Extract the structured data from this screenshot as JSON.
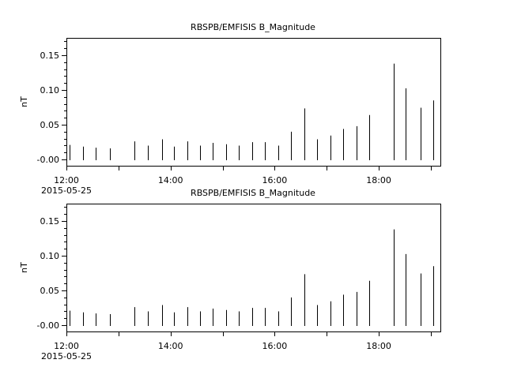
{
  "chart_data": [
    {
      "type": "bar",
      "title": "RBSPB/EMFISIS  B_Magnitude",
      "ylabel": "nT",
      "xlabel": "",
      "date_label": "2015-05-25",
      "ylim": [
        -0.009,
        0.175
      ],
      "xlim": [
        "12:00",
        "19:11"
      ],
      "yticks": [
        "-0.00",
        "0.05",
        "0.10",
        "0.15"
      ],
      "ytick_values": [
        0,
        0.05,
        0.1,
        0.15
      ],
      "xticks": [
        "12:00",
        "14:00",
        "16:00",
        "18:00"
      ],
      "grid": false,
      "x": [
        "12:04",
        "12:19",
        "12:34",
        "12:50",
        "13:18",
        "13:34",
        "13:50",
        "14:04",
        "14:19",
        "14:34",
        "14:49",
        "15:04",
        "15:19",
        "15:34",
        "15:49",
        "16:04",
        "16:19",
        "16:34",
        "16:49",
        "17:04",
        "17:19",
        "17:34",
        "17:49",
        "18:17",
        "18:31",
        "18:48",
        "19:03"
      ],
      "values": [
        0.021,
        0.0185,
        0.017,
        0.016,
        0.026,
        0.02,
        0.029,
        0.0185,
        0.026,
        0.02,
        0.024,
        0.022,
        0.02,
        0.025,
        0.025,
        0.02,
        0.04,
        0.0735,
        0.029,
        0.0345,
        0.044,
        0.048,
        0.064,
        0.138,
        0.1025,
        0.0745,
        0.085
      ],
      "color": "#000000"
    },
    {
      "type": "bar",
      "title": "RBSPB/EMFISIS  B_Magnitude",
      "ylabel": "nT",
      "xlabel": "",
      "date_label": "2015-05-25",
      "ylim": [
        -0.009,
        0.175
      ],
      "xlim": [
        "12:00",
        "19:11"
      ],
      "yticks": [
        "-0.00",
        "0.05",
        "0.10",
        "0.15"
      ],
      "ytick_values": [
        0,
        0.05,
        0.1,
        0.15
      ],
      "xticks": [
        "12:00",
        "14:00",
        "16:00",
        "18:00"
      ],
      "grid": false,
      "x": [
        "12:04",
        "12:19",
        "12:34",
        "12:50",
        "13:18",
        "13:34",
        "13:50",
        "14:04",
        "14:19",
        "14:34",
        "14:49",
        "15:04",
        "15:19",
        "15:34",
        "15:49",
        "16:04",
        "16:19",
        "16:34",
        "16:49",
        "17:04",
        "17:19",
        "17:34",
        "17:49",
        "18:17",
        "18:31",
        "18:48",
        "19:03"
      ],
      "values": [
        0.021,
        0.0185,
        0.017,
        0.016,
        0.026,
        0.02,
        0.029,
        0.0185,
        0.026,
        0.02,
        0.024,
        0.022,
        0.02,
        0.025,
        0.025,
        0.02,
        0.04,
        0.0735,
        0.029,
        0.0345,
        0.044,
        0.048,
        0.064,
        0.138,
        0.1025,
        0.0745,
        0.085
      ],
      "color": "#000000"
    }
  ]
}
